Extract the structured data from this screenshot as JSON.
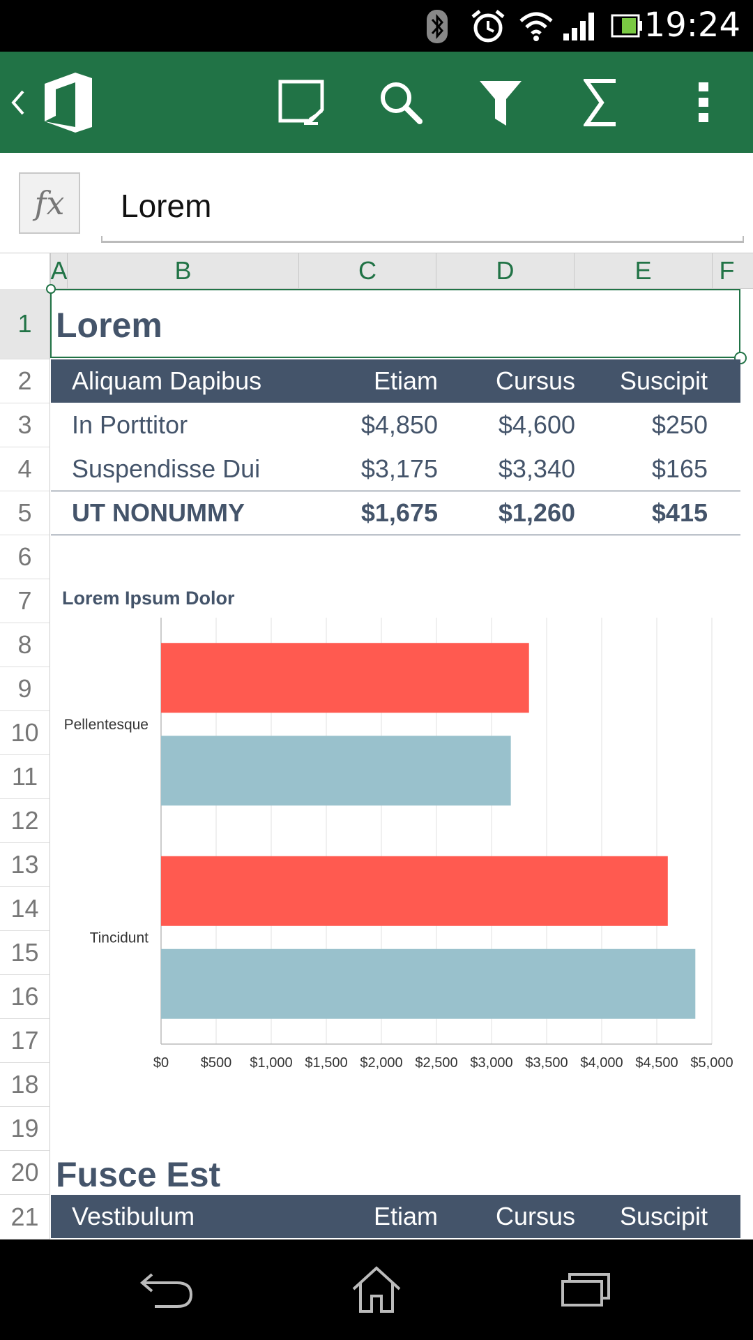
{
  "status_bar": {
    "time": "19:24",
    "icons": [
      "bluetooth-icon",
      "alarm-icon",
      "wifi-icon",
      "signal-icon",
      "battery-icon"
    ]
  },
  "toolbar": {
    "icons": [
      "back-chevron-icon",
      "office-logo-icon",
      "touch-mode-icon",
      "search-icon",
      "filter-icon",
      "sum-icon",
      "more-icon"
    ],
    "accent": "#217346"
  },
  "formula_bar": {
    "fx_label": "fx",
    "value": "Lorem"
  },
  "columns": [
    "A",
    "B",
    "C",
    "D",
    "E",
    "F"
  ],
  "rows": [
    "1",
    "2",
    "3",
    "4",
    "5",
    "6",
    "7",
    "8",
    "9",
    "10",
    "11",
    "12",
    "13",
    "14",
    "15",
    "16",
    "17",
    "18",
    "19",
    "20",
    "21"
  ],
  "sheet": {
    "title": "Lorem",
    "table1": {
      "headers": [
        "Aliquam Dapibus",
        "Etiam",
        "Cursus",
        "Suscipit"
      ],
      "rows": [
        [
          "In Porttitor",
          "$4,850",
          "$4,600",
          "$250"
        ],
        [
          "Suspendisse Dui",
          "$3,175",
          "$3,340",
          "$165"
        ],
        [
          "UT NONUMMY",
          "$1,675",
          "$1,260",
          "$415"
        ]
      ]
    },
    "section2_title": "Fusce Est",
    "table2": {
      "headers": [
        "Vestibulum",
        "Etiam",
        "Cursus",
        "Suscipit"
      ]
    }
  },
  "chart_data": {
    "type": "bar",
    "orientation": "horizontal",
    "title": "Lorem Ipsum Dolor",
    "categories": [
      "Pellentesque",
      "Tincidunt"
    ],
    "series": [
      {
        "color": "#ff5a50",
        "values": [
          3340,
          4600
        ]
      },
      {
        "color": "#99c1cc",
        "values": [
          3175,
          4850
        ]
      }
    ],
    "xlim": [
      0,
      5000
    ],
    "xticks": [
      "$0",
      "$500",
      "$1,000",
      "$1,500",
      "$2,000",
      "$2,500",
      "$3,000",
      "$3,500",
      "$4,000",
      "$4,500",
      "$5,000"
    ],
    "grid": true
  },
  "nav_bar": {
    "icons": [
      "back-icon",
      "home-icon",
      "recents-icon"
    ]
  }
}
